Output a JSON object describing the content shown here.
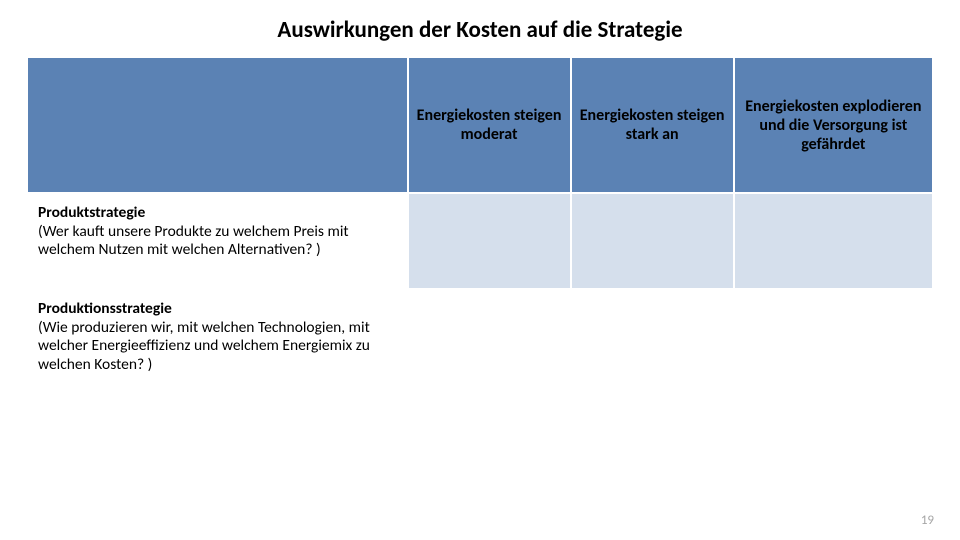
{
  "title": "Auswirkungen der Kosten auf die Strategie",
  "columns": {
    "col1": "",
    "col2": "Energiekosten steigen moderat",
    "col3": "Energiekosten steigen  stark an",
    "col4": "Energiekosten explodieren und die Versorgung ist gefährdet"
  },
  "rows": {
    "r1": {
      "label_bold": "Produktstrategie",
      "label_rest": "(Wer kauft unsere Produkte zu welchem Preis mit welchem Nutzen mit welchen Alternativen? )"
    },
    "r2": {
      "label_bold": "Produktionsstrategie",
      "label_rest": "(Wie produzieren wir, mit welchen Technologien, mit welcher Energieeffizienz und welchem Energiemix zu welchen Kosten? )"
    }
  },
  "page_number": "19",
  "colors": {
    "header_bg": "#5b82b4",
    "row_alt_bg": "#d5dfec",
    "row_white_bg": "#ffffff",
    "border": "#ffffff",
    "page_num": "#a6a6a6"
  }
}
